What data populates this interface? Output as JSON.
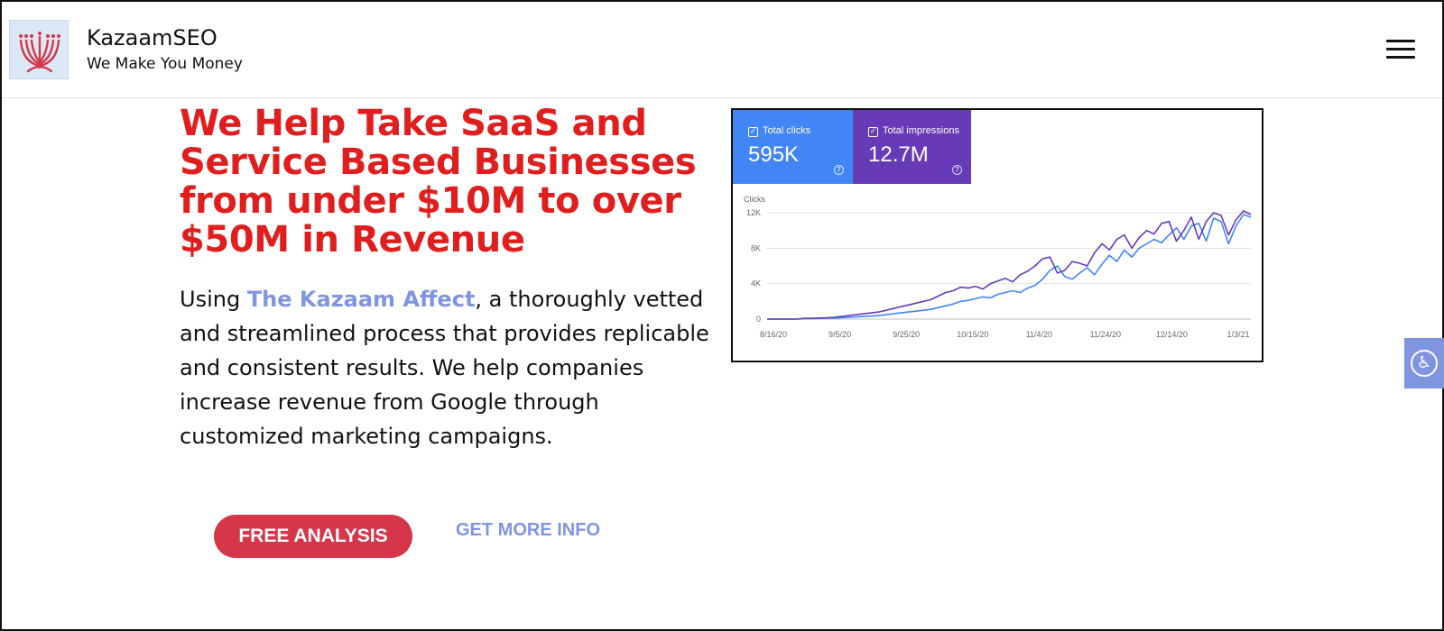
{
  "header": {
    "brand_title": "KazaamSEO",
    "tagline": "We Make You Money",
    "menu_icon": "hamburger-menu-icon"
  },
  "hero": {
    "title": "We Help Take SaaS and Service Based Businesses from under $10M to over $50M in Revenue",
    "body_prefix": "Using ",
    "body_accent": "The Kazaam Affect",
    "body_suffix": ", a thoroughly vetted and streamlined process that provides replicable and consistent results. We help companies increase revenue from Google through customized marketing campaigns.",
    "cta_primary": "FREE ANALYSIS",
    "cta_secondary": "GET MORE INFO"
  },
  "colors": {
    "title_red": "#e01e1e",
    "accent_blue": "#7f95e0",
    "button_red": "#d6364a",
    "clicks_blue": "#4285f4",
    "impressions_purple": "#673ab7"
  },
  "chart_data": {
    "type": "line",
    "metrics": [
      {
        "label": "Total clicks",
        "value": "595K"
      },
      {
        "label": "Total impressions",
        "value": "12.7M"
      }
    ],
    "ylabel": "Clicks",
    "y_ticks": [
      "0",
      "4K",
      "8K",
      "12K"
    ],
    "ylim": [
      0,
      12000
    ],
    "x_ticks": [
      "8/16/20",
      "9/5/20",
      "9/25/20",
      "10/15/20",
      "11/4/20",
      "11/24/20",
      "12/14/20",
      "1/3/21"
    ],
    "series": [
      {
        "color": "#4285f4",
        "values": [
          0,
          0,
          0,
          0,
          0,
          50,
          60,
          80,
          100,
          120,
          150,
          200,
          250,
          300,
          350,
          400,
          500,
          600,
          700,
          800,
          900,
          1000,
          1100,
          1300,
          1500,
          1700,
          2000,
          2100,
          2300,
          2500,
          2400,
          2800,
          3000,
          3200,
          3000,
          3500,
          3800,
          4500,
          5500,
          6000,
          4800,
          4500,
          5200,
          5800,
          5000,
          6200,
          7200,
          6500,
          7800,
          7000,
          8000,
          8500,
          9000,
          8600,
          9500,
          10300,
          9000,
          10500,
          10800,
          8800,
          11400,
          11000,
          8500,
          10500,
          11800,
          11500
        ]
      },
      {
        "color": "#673ab7",
        "values": [
          0,
          0,
          0,
          0,
          0,
          80,
          100,
          120,
          150,
          200,
          300,
          400,
          500,
          600,
          700,
          800,
          1000,
          1200,
          1400,
          1600,
          1800,
          2000,
          2200,
          2600,
          3000,
          3200,
          3600,
          3500,
          3700,
          3400,
          4000,
          4300,
          4600,
          4200,
          5000,
          5400,
          6000,
          6800,
          7000,
          5200,
          5500,
          6500,
          6300,
          6000,
          7500,
          8500,
          7800,
          9000,
          9500,
          8000,
          9200,
          10000,
          9600,
          10800,
          11000,
          8800,
          10000,
          11500,
          9000,
          11000,
          12000,
          11700,
          9500,
          11200,
          12200,
          11800
        ]
      }
    ]
  },
  "a11y": {
    "icon": "accessibility-icon"
  }
}
